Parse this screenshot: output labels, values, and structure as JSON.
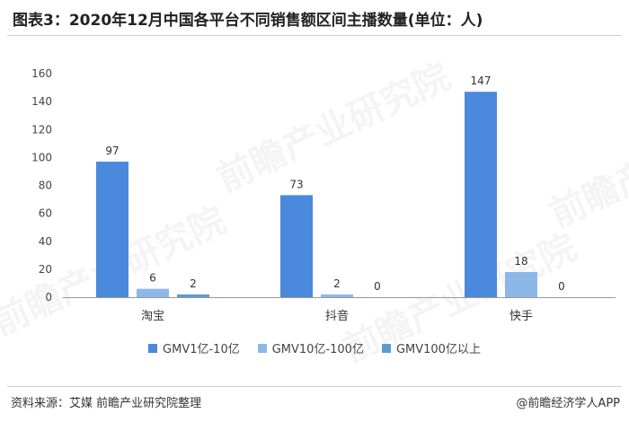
{
  "title": "图表3：2020年12月中国各平台不同销售额区间主播数量(单位：人)",
  "source": "资料来源：艾媒 前瞻产业研究院整理",
  "brand": "@前瞻经济学人APP",
  "watermark": "前瞻产业研究院",
  "colors": {
    "series1": "#4a89dc",
    "series2": "#8cb8e8",
    "series3": "#5b9bd5",
    "axis": "#999999",
    "grid": "#e6e6e6"
  },
  "chart_data": {
    "type": "bar",
    "categories": [
      "淘宝",
      "抖音",
      "快手"
    ],
    "series": [
      {
        "name": "GMV1亿-10亿",
        "values": [
          97,
          73,
          147
        ]
      },
      {
        "name": "GMV10亿-100亿",
        "values": [
          6,
          2,
          18
        ]
      },
      {
        "name": "GMV100亿以上",
        "values": [
          2,
          0,
          0
        ]
      }
    ],
    "ylim": [
      0,
      160
    ],
    "yticks": [
      0,
      20,
      40,
      60,
      80,
      100,
      120,
      140,
      160
    ],
    "legend_position": "bottom",
    "data_labels": true
  }
}
